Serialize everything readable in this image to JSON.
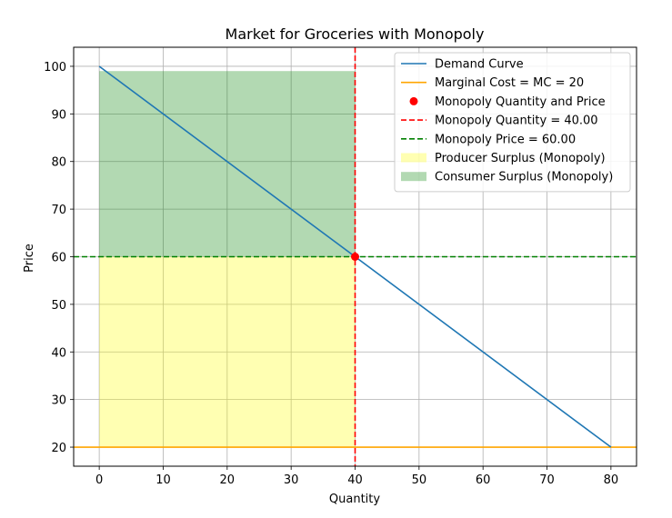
{
  "chart_data": {
    "type": "line",
    "title": "Market for Groceries with Monopoly",
    "xlabel": "Quantity",
    "ylabel": "Price",
    "xlim": [
      -4,
      84
    ],
    "ylim": [
      16,
      104
    ],
    "xticks": [
      0,
      10,
      20,
      30,
      40,
      50,
      60,
      70,
      80
    ],
    "yticks": [
      20,
      30,
      40,
      50,
      60,
      70,
      80,
      90,
      100
    ],
    "grid": true,
    "legend_position": "top-right",
    "series": [
      {
        "name": "Demand Curve",
        "kind": "line",
        "color": "#1f77b4",
        "x": [
          0,
          80
        ],
        "y": [
          100,
          20
        ]
      },
      {
        "name": "Marginal Cost = MC = 20",
        "kind": "hline",
        "color": "#ffa500",
        "y": 20
      },
      {
        "name": "Monopoly Quantity and Price",
        "kind": "point",
        "color": "#ff0000",
        "x": 40,
        "y": 60
      },
      {
        "name": "Monopoly Quantity = 40.00",
        "kind": "vline-dashed",
        "color": "#ff0000",
        "x": 40
      },
      {
        "name": "Monopoly Price = 60.00",
        "kind": "hline-dashed",
        "color": "#008000",
        "y": 60
      },
      {
        "name": "Producer Surplus (Monopoly)",
        "kind": "fill",
        "color": "#ffff00",
        "opacity": 0.3,
        "x": [
          0,
          40
        ],
        "y": [
          20,
          60
        ]
      },
      {
        "name": "Consumer Surplus (Monopoly)",
        "kind": "fill",
        "color": "#008000",
        "opacity": 0.3,
        "x": [
          0,
          40
        ],
        "y": [
          60,
          99
        ]
      }
    ]
  }
}
